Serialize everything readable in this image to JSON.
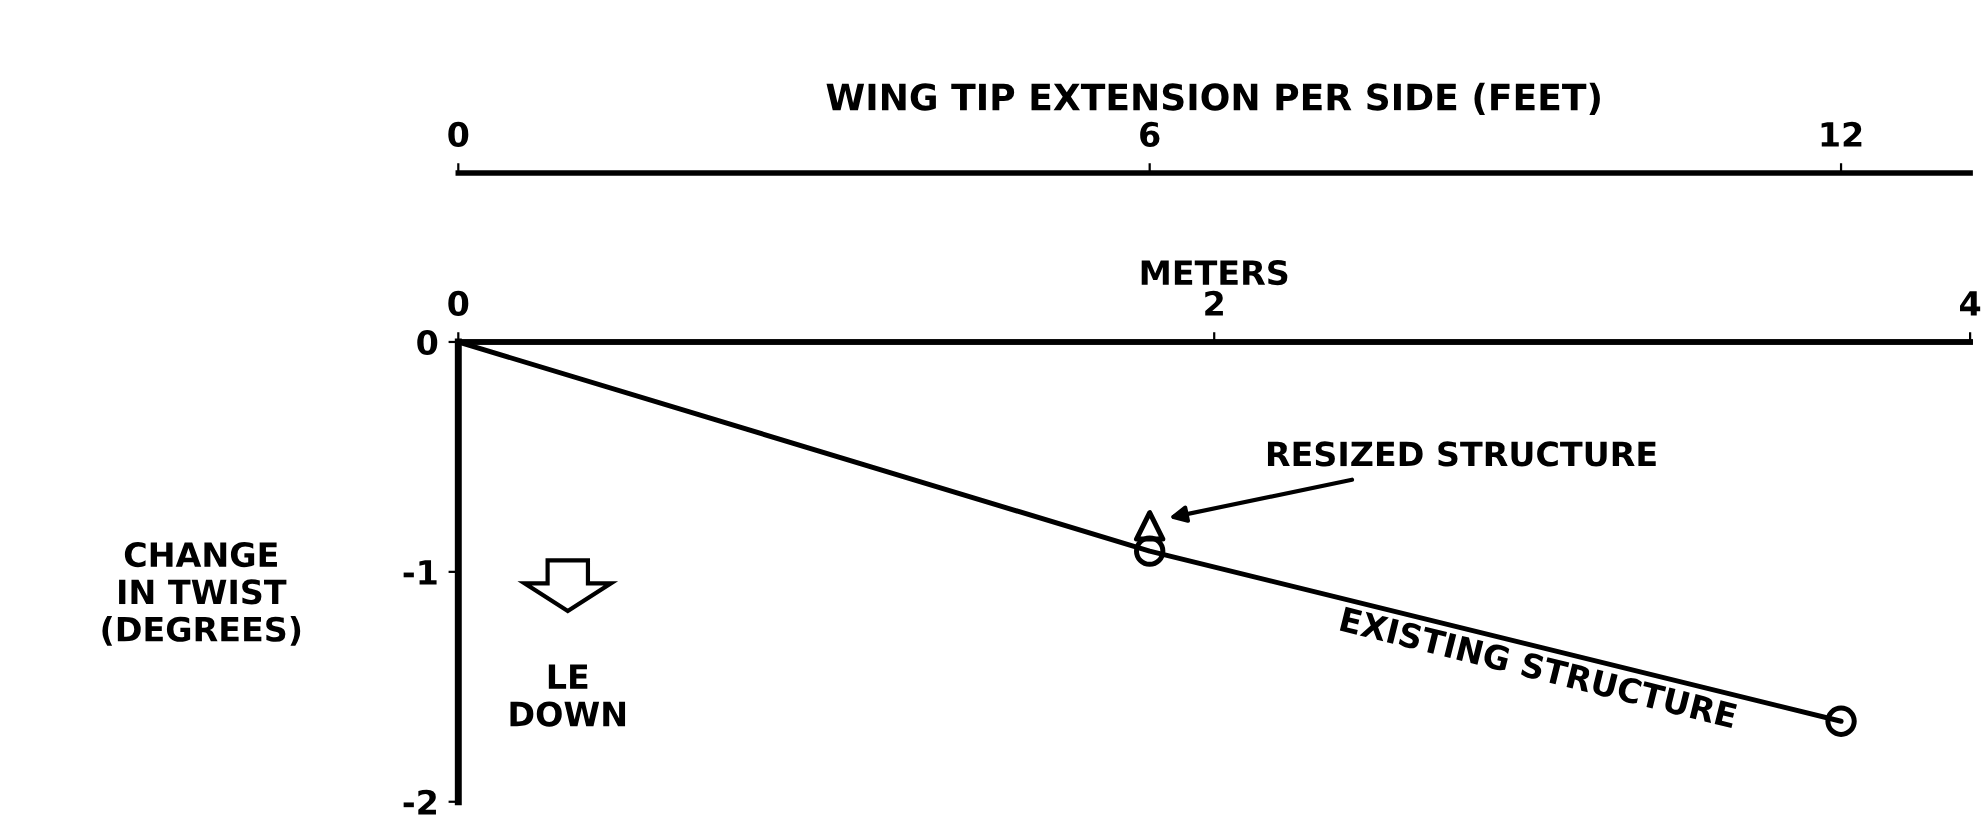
{
  "chart_data": {
    "type": "line",
    "xlabel": "WING TIP EXTENSION PER SIDE (FEET)",
    "x2label": "METERS",
    "ylabel": "CHANGE\nIN TWIST\n(DEGREES)",
    "xlim": [
      0,
      13.12
    ],
    "xticks": [
      0,
      6,
      12
    ],
    "x2lim": [
      0,
      4
    ],
    "x2ticks": [
      0,
      2,
      4
    ],
    "ylim": [
      -2,
      0
    ],
    "yticks": [
      -2,
      -1,
      0
    ],
    "series": [
      {
        "name": "EXISTING STRUCTURE",
        "color": "#000000",
        "x": [
          0,
          6,
          12
        ],
        "values": [
          0,
          -0.91,
          -1.65
        ],
        "marker": "none"
      },
      {
        "type": "scatter",
        "color": "#000000",
        "x": [
          6,
          12
        ],
        "values": [
          -0.91,
          -1.65
        ],
        "marker": "circle"
      },
      {
        "name": "RESIZED STRUCTURE",
        "type": "scatter",
        "color": "#000000",
        "x": [
          6
        ],
        "values": [
          -0.8
        ],
        "marker": "triangle"
      }
    ],
    "annotations": [
      "LE\nDOWN"
    ],
    "grid": false,
    "legend": false
  }
}
